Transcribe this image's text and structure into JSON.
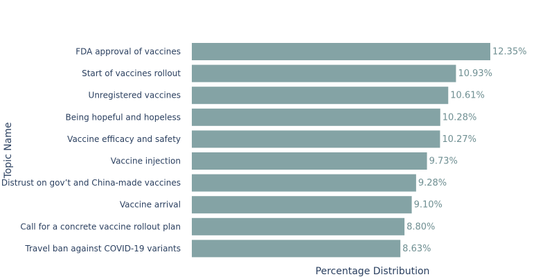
{
  "chart_data": {
    "type": "bar",
    "orientation": "horizontal",
    "categories": [
      "FDA approval of vaccines",
      "Start of vaccines rollout",
      "Unregistered vaccines",
      "Being hopeful and hopeless",
      "Vaccine efficacy and safety",
      "Vaccine injection",
      "Distrust on gov’t and China-made vaccines",
      "Vaccine arrival",
      "Call for a concrete vaccine rollout plan",
      "Travel ban against COVID-19 variants"
    ],
    "values": [
      12.35,
      10.93,
      10.61,
      10.28,
      10.27,
      9.73,
      9.28,
      9.1,
      8.8,
      8.63
    ],
    "value_labels": [
      "12.35%",
      "10.93%",
      "10.61%",
      "10.28%",
      "10.27%",
      "9.73%",
      "9.28%",
      "9.10%",
      "8.80%",
      "8.63%"
    ],
    "xlabel": "Percentage Distribution",
    "ylabel": "Topic Name",
    "xlim": [
      0,
      12.35
    ],
    "grid": false,
    "legend": "none",
    "colors": {
      "bar": "#84a3a5",
      "value_text": "#6f8f92",
      "axis_text": "#2a3f5f"
    }
  }
}
